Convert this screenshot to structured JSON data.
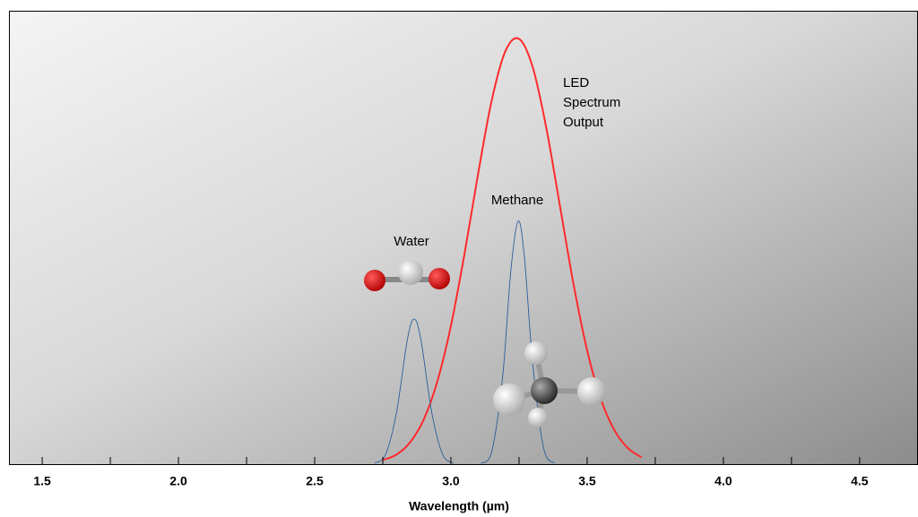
{
  "chart_data": {
    "type": "line",
    "x_label": "Wavelength (µm)",
    "xlim": [
      1.378,
      4.711
    ],
    "ylim": [
      0,
      1
    ],
    "xticks": [
      1.5,
      {
        "value": 2.0,
        "label": "2.0"
      },
      2.5,
      {
        "value": 3.0,
        "label": "3.0"
      },
      3.5,
      {
        "value": 4.0,
        "label": "4.0"
      },
      4.5
    ],
    "xminor_ticks": [
      1.75,
      2.25,
      2.75,
      3.25,
      3.75,
      4.25
    ],
    "series": [
      {
        "color": "#ff2a2a",
        "x": [
          2.75,
          2.8,
          2.85,
          2.9,
          2.95,
          3.0,
          3.05,
          3.1,
          3.15,
          3.2,
          3.25,
          3.3,
          3.35,
          3.4,
          3.45,
          3.5,
          3.55,
          3.6,
          3.65,
          3.7
        ],
        "values": [
          0.009,
          0.021,
          0.048,
          0.098,
          0.182,
          0.305,
          0.464,
          0.641,
          0.803,
          0.911,
          0.938,
          0.876,
          0.742,
          0.57,
          0.397,
          0.251,
          0.144,
          0.075,
          0.035,
          0.015
        ]
      },
      {
        "color": "#2c5d9c",
        "x": [
          2.72,
          2.76,
          2.8,
          2.84,
          2.865,
          2.89,
          2.93,
          2.97,
          3.01
        ],
        "values": [
          0.002,
          0.021,
          0.113,
          0.274,
          0.32,
          0.274,
          0.113,
          0.021,
          0.002
        ]
      },
      {
        "color": "#2c5d9c",
        "x": [
          3.11,
          3.15,
          3.19,
          3.22,
          3.247,
          3.27,
          3.3,
          3.34,
          3.38
        ],
        "values": [
          0.002,
          0.028,
          0.194,
          0.427,
          0.536,
          0.455,
          0.223,
          0.036,
          0.002
        ]
      }
    ],
    "annotations": [
      [
        "LED",
        "Spectrum",
        "Output"
      ],
      [
        "Methane"
      ],
      [
        "Water"
      ]
    ]
  }
}
